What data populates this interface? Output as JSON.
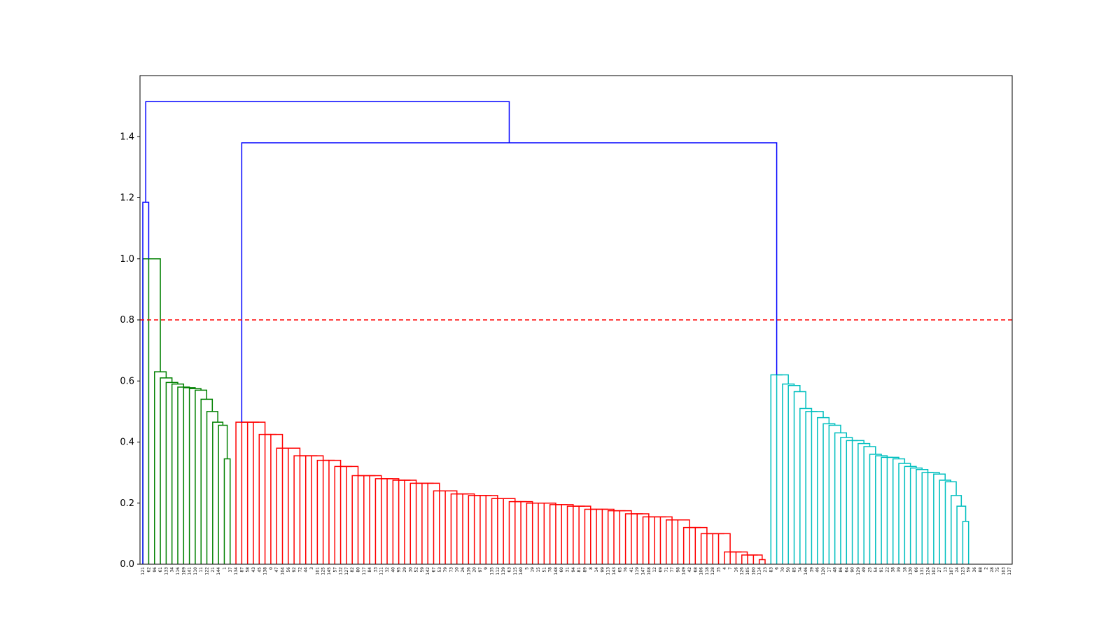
{
  "chart_data": {
    "type": "dendrogram",
    "title": "",
    "xlabel": "",
    "ylabel": "",
    "ylim": [
      0,
      1.6
    ],
    "yticks": [
      0.0,
      0.2,
      0.4,
      0.6,
      0.8,
      1.0,
      1.2,
      1.4
    ],
    "ytick_labels": [
      "0.0",
      "0.2",
      "0.4",
      "0.6",
      "0.8",
      "1.0",
      "1.2",
      "1.4"
    ],
    "threshold": {
      "value": 0.8,
      "color": "#ff0000",
      "style": "dashed"
    },
    "root_link_color": "#0000ff",
    "cluster_colors": [
      "#008000",
      "#ff0000",
      "#00bfbf"
    ],
    "leaves": [
      "121",
      "62",
      "96",
      "61",
      "133",
      "34",
      "116",
      "109",
      "141",
      "110",
      "11",
      "122",
      "21",
      "144",
      "1",
      "37",
      "134",
      "87",
      "58",
      "43",
      "45",
      "138",
      "0",
      "47",
      "104",
      "56",
      "92",
      "72",
      "44",
      "3",
      "101",
      "125",
      "145",
      "57",
      "132",
      "127",
      "82",
      "80",
      "117",
      "84",
      "33",
      "111",
      "32",
      "40",
      "95",
      "29",
      "30",
      "52",
      "59",
      "142",
      "67",
      "53",
      "79",
      "73",
      "10",
      "26",
      "136",
      "20",
      "97",
      "9",
      "135",
      "112",
      "139",
      "63",
      "115",
      "140",
      "5",
      "19",
      "15",
      "51",
      "78",
      "148",
      "60",
      "31",
      "94",
      "81",
      "89",
      "8",
      "14",
      "99",
      "113",
      "143",
      "65",
      "76",
      "41",
      "119",
      "147",
      "108",
      "12",
      "69",
      "71",
      "77",
      "98",
      "149",
      "42",
      "68",
      "106",
      "118",
      "128",
      "35",
      "4",
      "7",
      "16",
      "126",
      "105",
      "100",
      "114",
      "23",
      "83",
      "6",
      "70",
      "50",
      "85",
      "74",
      "146",
      "39",
      "46",
      "120",
      "17",
      "48",
      "86",
      "64",
      "90",
      "129",
      "49",
      "25",
      "54",
      "91",
      "22",
      "38",
      "39",
      "18",
      "130",
      "66",
      "131",
      "124",
      "102",
      "27",
      "13",
      "107",
      "24",
      "123",
      "59",
      "36",
      "88",
      "2",
      "28",
      "75",
      "103",
      "137"
    ],
    "clusters": [
      {
        "color": "#008000",
        "leaf_range": [
          0,
          15
        ],
        "height": 1.0,
        "merge_heights": [
          1.0,
          0.63,
          0.61,
          0.595,
          0.59,
          0.58,
          0.578,
          0.575,
          0.57,
          0.54,
          0.5,
          0.465,
          0.455,
          0.345
        ]
      },
      {
        "color": "#ff0000",
        "leaf_range": [
          16,
          107
        ],
        "height": 0.465,
        "merge_heights": [
          0.465,
          0.425,
          0.38,
          0.355,
          0.34,
          0.32,
          0.29,
          0.28,
          0.275,
          0.265,
          0.24,
          0.23,
          0.225,
          0.215,
          0.205,
          0.2,
          0.195,
          0.19,
          0.18,
          0.175,
          0.165,
          0.155,
          0.145,
          0.12,
          0.1,
          0.04,
          0.03,
          0.015
        ]
      },
      {
        "color": "#00bfbf",
        "leaf_range": [
          108,
          142
        ],
        "height": 0.62,
        "merge_heights": [
          0.62,
          0.59,
          0.585,
          0.565,
          0.51,
          0.5,
          0.48,
          0.46,
          0.455,
          0.43,
          0.415,
          0.405,
          0.395,
          0.385,
          0.36,
          0.355,
          0.35,
          0.345,
          0.33,
          0.32,
          0.315,
          0.31,
          0.3,
          0.295,
          0.275,
          0.27,
          0.225,
          0.19,
          0.14
        ]
      }
    ],
    "top_links": [
      {
        "merges": "green + singleton(121)",
        "height": 1.185,
        "color": "#0000ff"
      },
      {
        "merges": "red + cyan",
        "height": 1.38,
        "color": "#0000ff"
      },
      {
        "merges": "root",
        "height": 1.515,
        "color": "#0000ff"
      }
    ]
  }
}
